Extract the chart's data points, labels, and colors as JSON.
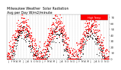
{
  "title": "Milwaukee Weather  Solar Radiation\nAvg per Day W/m2/minute",
  "title_fontsize": 3.5,
  "background_color": "#ffffff",
  "plot_bg_color": "#ffffff",
  "grid_color": "#bbbbbb",
  "ylim": [
    0,
    75
  ],
  "yticks": [
    0,
    10,
    20,
    30,
    40,
    50,
    60,
    70
  ],
  "ylabel_fontsize": 3.0,
  "xlabel_fontsize": 2.5,
  "legend_label": "High Temp",
  "legend_color_red": "#ff0000",
  "legend_color_black": "#000000",
  "dot_size_red": 1.0,
  "dot_size_black": 0.8,
  "num_years": 3,
  "points_per_year": 365
}
